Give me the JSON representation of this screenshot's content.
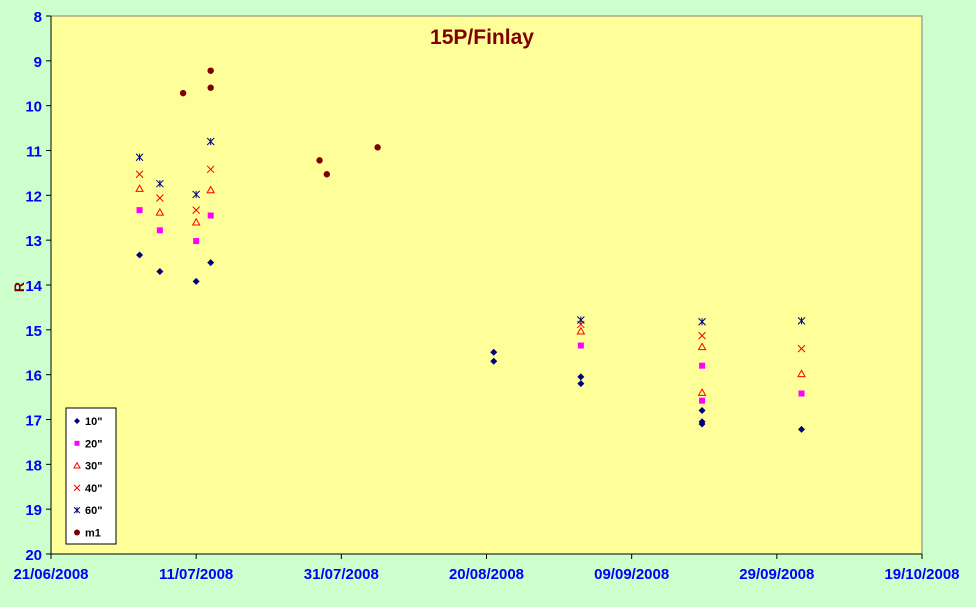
{
  "chart_data": {
    "type": "scatter",
    "title": "15P/Finlay",
    "xlabel": "",
    "ylabel": "R",
    "x_ticks": [
      "21/06/2008",
      "11/07/2008",
      "31/07/2008",
      "20/08/2008",
      "09/09/2008",
      "29/09/2008",
      "19/10/2008"
    ],
    "x_tick_days": [
      0,
      20,
      40,
      60,
      80,
      100,
      120
    ],
    "xlim_days": [
      0,
      120
    ],
    "ylim": [
      8,
      20
    ],
    "y_inverted": true,
    "y_ticks": [
      8,
      9,
      10,
      11,
      12,
      13,
      14,
      15,
      16,
      17,
      18,
      19,
      20
    ],
    "grid": false,
    "legend_position": "bottom-left",
    "plot_background": "#ffff99",
    "page_background": "#ccffcc",
    "title_color": "#800000",
    "axis_text_color": "#0000ff",
    "series": [
      {
        "name": "10\"",
        "marker": "diamond",
        "color": "#000080",
        "points": [
          [
            12.2,
            13.33
          ],
          [
            15.0,
            13.7
          ],
          [
            20.0,
            13.92
          ],
          [
            22.0,
            13.5
          ],
          [
            61.0,
            15.5
          ],
          [
            61.0,
            15.7
          ],
          [
            73.0,
            16.05
          ],
          [
            73.0,
            16.2
          ],
          [
            89.7,
            16.8
          ],
          [
            89.7,
            17.05
          ],
          [
            89.7,
            17.1
          ],
          [
            103.4,
            17.22
          ]
        ]
      },
      {
        "name": "20\"",
        "marker": "square",
        "color": "#ff00ff",
        "points": [
          [
            12.2,
            12.33
          ],
          [
            15.0,
            12.78
          ],
          [
            20.0,
            13.02
          ],
          [
            22.0,
            12.45
          ],
          [
            73.0,
            15.35
          ],
          [
            89.7,
            15.8
          ],
          [
            89.7,
            16.58
          ],
          [
            103.4,
            16.42
          ]
        ]
      },
      {
        "name": "30\"",
        "marker": "triangle",
        "color": "#ff0000",
        "points": [
          [
            12.2,
            11.85
          ],
          [
            15.0,
            12.38
          ],
          [
            20.0,
            12.6
          ],
          [
            22.0,
            11.88
          ],
          [
            73.0,
            15.03
          ],
          [
            89.7,
            15.38
          ],
          [
            89.7,
            16.4
          ],
          [
            103.4,
            15.98
          ]
        ]
      },
      {
        "name": "40\"",
        "marker": "x",
        "color": "#ff0000",
        "points": [
          [
            12.2,
            11.53
          ],
          [
            15.0,
            12.06
          ],
          [
            20.0,
            12.33
          ],
          [
            22.0,
            11.42
          ],
          [
            73.0,
            14.88
          ],
          [
            89.7,
            15.13
          ],
          [
            103.4,
            15.42
          ]
        ]
      },
      {
        "name": "60\"",
        "marker": "star",
        "color": "#000080",
        "points": [
          [
            12.2,
            11.15
          ],
          [
            15.0,
            11.74
          ],
          [
            20.0,
            11.98
          ],
          [
            22.0,
            10.8
          ],
          [
            73.0,
            14.78
          ],
          [
            89.7,
            14.82
          ],
          [
            103.4,
            14.8
          ]
        ]
      },
      {
        "name": "m1",
        "marker": "circle",
        "color": "#800000",
        "points": [
          [
            18.2,
            9.72
          ],
          [
            22.0,
            9.22
          ],
          [
            22.0,
            9.6
          ],
          [
            37.0,
            11.22
          ],
          [
            38.0,
            11.53
          ],
          [
            45.0,
            10.93
          ]
        ]
      }
    ]
  }
}
